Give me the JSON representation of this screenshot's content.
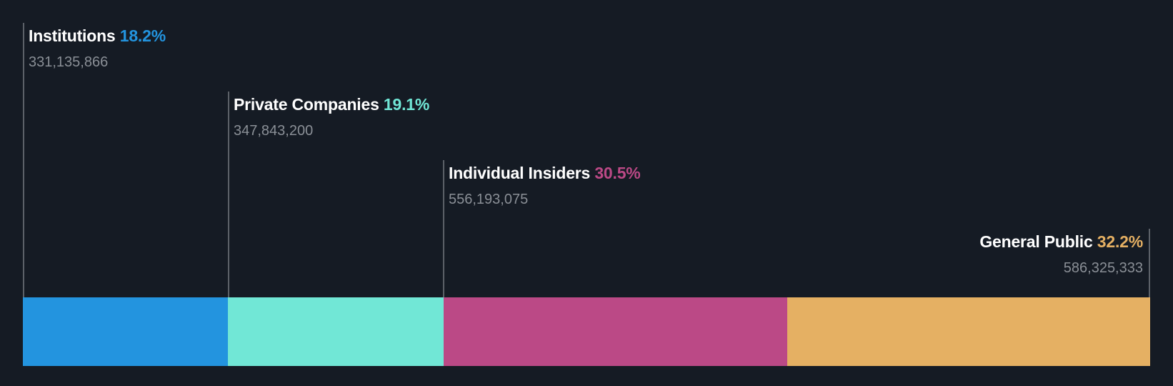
{
  "chart_data": {
    "type": "bar",
    "orientation": "horizontal-stacked",
    "title": "",
    "categories": [
      "Institutions",
      "Private Companies",
      "Individual Insiders",
      "General Public"
    ],
    "values": [
      18.2,
      19.1,
      30.5,
      32.2
    ],
    "counts": [
      331135866,
      347843200,
      556193075,
      586325333
    ],
    "unit": "%",
    "series": [
      {
        "name": "Institutions",
        "percent": 18.2,
        "shares": 331135866,
        "color": "#2394df"
      },
      {
        "name": "Private Companies",
        "percent": 19.1,
        "shares": 347843200,
        "color": "#71e7d6"
      },
      {
        "name": "Individual Insiders",
        "percent": 30.5,
        "shares": 556193075,
        "color": "#bb4986"
      },
      {
        "name": "General Public",
        "percent": 32.2,
        "shares": 586325333,
        "color": "#e5b063"
      }
    ],
    "legend": "inline-labels",
    "grid": false
  },
  "labels": [
    {
      "name": "Institutions",
      "pct": "18.2%",
      "count": "331,135,866",
      "color": "#2394df"
    },
    {
      "name": "Private Companies",
      "pct": "19.1%",
      "count": "347,843,200",
      "color": "#71e7d6"
    },
    {
      "name": "Individual Insiders",
      "pct": "30.5%",
      "count": "556,193,075",
      "color": "#bb4986"
    },
    {
      "name": "General Public",
      "pct": "32.2%",
      "count": "586,325,333",
      "color": "#e5b063"
    }
  ],
  "colors": {
    "background": "#151b24",
    "title_text": "#ffffff",
    "count_text": "#8a8f96",
    "marker_line": "#5c6168"
  }
}
